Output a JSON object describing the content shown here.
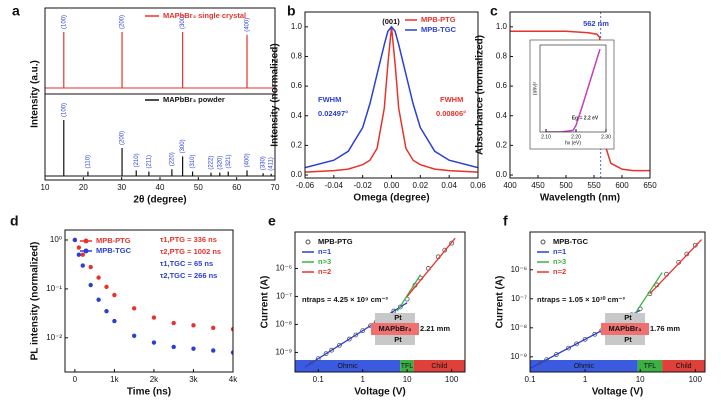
{
  "chart_data": [
    {
      "type": "stem",
      "panel": "a",
      "xlabel": "2θ (degree)",
      "ylabel": "Intensity (a.u.)",
      "xlim": [
        10,
        70
      ],
      "xticks": [
        10,
        20,
        30,
        40,
        50,
        60,
        70
      ],
      "series": [
        {
          "name": "MAPbBr₃ single crystal",
          "color": "#e8322c",
          "label_color": "#2a3fd4",
          "x": [
            14.9,
            30.1,
            45.9,
            62.7
          ],
          "values": [
            1.0,
            1.0,
            1.0,
            0.95
          ],
          "peak_labels": [
            "(100)",
            "(200)",
            "(300)",
            "(400)"
          ]
        },
        {
          "name": "MAPbBr₃ powder",
          "color": "#111111",
          "label_color": "#2a3fd4",
          "x": [
            14.9,
            21.2,
            30.1,
            33.8,
            37.1,
            43.1,
            45.9,
            48.5,
            53.3,
            55.6,
            57.8,
            62.7,
            66.9,
            69.0
          ],
          "values": [
            1.0,
            0.08,
            0.5,
            0.1,
            0.08,
            0.12,
            0.35,
            0.08,
            0.06,
            0.06,
            0.08,
            0.1,
            0.05,
            0.04
          ],
          "peak_labels": [
            "(100)",
            "(110)",
            "(200)",
            "(210)",
            "(211)",
            "(220)",
            "(300)",
            "(310)",
            "(222)",
            "(320)",
            "(321)",
            "(400)",
            "(330)",
            "(411)"
          ]
        }
      ]
    },
    {
      "type": "line",
      "panel": "b",
      "xlabel": "Omega (degree)",
      "ylabel": "Intensity (normalized)",
      "xlim": [
        -0.06,
        0.06
      ],
      "xticks": [
        -0.06,
        -0.04,
        -0.02,
        {
          "value": 0,
          "label": "0.00"
        },
        0.02,
        0.04,
        0.06
      ],
      "ylim": [
        -0.02,
        1.1
      ],
      "yticks": [
        {
          "value": 0,
          "label": "0.0"
        },
        0.2,
        0.4,
        0.6,
        0.8,
        {
          "value": 1,
          "label": "1.0"
        }
      ],
      "series": [
        {
          "name": "MPB-PTG",
          "color": "#e8322c",
          "x": [
            -0.06,
            -0.04,
            -0.03,
            -0.02,
            -0.015,
            -0.01,
            -0.005,
            -0.0025,
            0,
            0.0025,
            0.005,
            0.01,
            0.015,
            0.02,
            0.03,
            0.04,
            0.06
          ],
          "values": [
            0.02,
            0.03,
            0.04,
            0.07,
            0.1,
            0.18,
            0.45,
            0.75,
            1.0,
            0.75,
            0.45,
            0.18,
            0.1,
            0.07,
            0.04,
            0.03,
            0.02
          ]
        },
        {
          "name": "MPB-TGC",
          "color": "#2a3fd4",
          "x": [
            -0.06,
            -0.04,
            -0.03,
            -0.02,
            -0.015,
            -0.01,
            -0.005,
            -0.0025,
            0,
            0.0025,
            0.005,
            0.01,
            0.015,
            0.02,
            0.03,
            0.04,
            0.06
          ],
          "values": [
            0.05,
            0.1,
            0.16,
            0.32,
            0.48,
            0.68,
            0.88,
            0.97,
            1.0,
            0.97,
            0.88,
            0.68,
            0.48,
            0.32,
            0.16,
            0.1,
            0.05
          ]
        }
      ],
      "annotations": [
        {
          "text": "(001)",
          "color": "#111111"
        },
        {
          "text": "FWHM",
          "color": "#2a3fd4"
        },
        {
          "text": "0.02497°",
          "color": "#2a3fd4"
        },
        {
          "text": "FWHM",
          "color": "#e8322c"
        },
        {
          "text": "0.00806°",
          "color": "#e8322c"
        }
      ]
    },
    {
      "type": "line",
      "panel": "c",
      "xlabel": "Wavelength (nm)",
      "ylabel": "Absorbance (normalized)",
      "xlim": [
        400,
        650
      ],
      "xticks": [
        400,
        450,
        500,
        550,
        600,
        650
      ],
      "ylim": [
        -0.02,
        1.1
      ],
      "yticks": [
        {
          "value": 0,
          "label": "0.0"
        },
        0.2,
        0.4,
        0.6,
        0.8,
        {
          "value": 1,
          "label": "1.0"
        }
      ],
      "marker_x": 562,
      "series": [
        {
          "color": "#e8322c",
          "x": [
            400,
            450,
            500,
            540,
            555,
            560,
            562,
            565,
            570,
            580,
            600,
            620,
            650
          ],
          "values": [
            0.97,
            0.97,
            0.97,
            0.96,
            0.95,
            0.93,
            0.8,
            0.45,
            0.2,
            0.08,
            0.04,
            0.03,
            0.03
          ]
        }
      ],
      "annotations": [
        {
          "text": "562 nm",
          "color": "#2a3fd4"
        }
      ]
    },
    {
      "type": "line",
      "xlabel": "hν (eV)",
      "ylabel": "(αhν)²",
      "xlim": [
        2.08,
        2.3
      ],
      "xticks": [
        {
          "value": 2.1,
          "label": "2.10"
        },
        {
          "value": 2.2,
          "label": "2.20"
        },
        {
          "value": 2.3,
          "label": "2.30"
        }
      ],
      "ylim": [
        0,
        1.05
      ],
      "series": [
        {
          "color": "#c040c0",
          "x": [
            2.1,
            2.15,
            2.19,
            2.2,
            2.22,
            2.25,
            2.28
          ],
          "values": [
            0,
            0,
            0.02,
            0.08,
            0.3,
            0.65,
            1.0
          ]
        }
      ],
      "annotations": [
        {
          "text": "Eg = 2.2 eV",
          "color": "#333333"
        }
      ]
    },
    {
      "type": "scatter",
      "panel": "d",
      "xlabel": "Time (ns)",
      "ylabel": "PL intensity (normalized)",
      "xlim": [
        -250,
        4000
      ],
      "xticks": [
        0,
        {
          "value": 1000,
          "label": "1k"
        },
        {
          "value": 2000,
          "label": "2k"
        },
        {
          "value": 3000,
          "label": "3k"
        },
        {
          "value": 4000,
          "label": "4k"
        }
      ],
      "yscale": "log",
      "ylim": [
        0.002,
        1.6
      ],
      "yticks": [
        {
          "value": 1,
          "label": "10⁰"
        },
        {
          "value": 0.1,
          "label": "10⁻¹"
        },
        {
          "value": 0.01,
          "label": "10⁻²"
        }
      ],
      "series": [
        {
          "name": "MPB-PTG",
          "color": "#e8322c",
          "marker": "filled",
          "x": [
            0,
            100,
            200,
            400,
            600,
            800,
            1000,
            1500,
            2000,
            2500,
            3000,
            3500,
            4000
          ],
          "values": [
            1,
            0.7,
            0.5,
            0.28,
            0.17,
            0.11,
            0.075,
            0.04,
            0.026,
            0.02,
            0.018,
            0.016,
            0.015
          ]
        },
        {
          "name": "MPB-TGC",
          "color": "#2a3fd4",
          "marker": "filled",
          "x": [
            0,
            100,
            200,
            400,
            600,
            800,
            1000,
            1500,
            2000,
            2500,
            3000,
            3500,
            4000
          ],
          "values": [
            1,
            0.5,
            0.3,
            0.12,
            0.06,
            0.035,
            0.022,
            0.011,
            0.008,
            0.0065,
            0.006,
            0.0055,
            0.005
          ]
        }
      ],
      "annotations": [
        {
          "text": "τ1,PTG = 336 ns",
          "color": "#e8322c"
        },
        {
          "text": "τ2,PTG = 1002 ns",
          "color": "#e8322c"
        },
        {
          "text": "τ1,TGC = 65 ns",
          "color": "#2a3fd4"
        },
        {
          "text": "τ2,TGC = 266 ns",
          "color": "#2a3fd4"
        }
      ]
    },
    {
      "type": "scatter",
      "panel": "e",
      "xlabel": "Voltage (V)",
      "ylabel": "Current (A)",
      "xscale": "log",
      "xlim": [
        0.03,
        200
      ],
      "xticks": [
        0.1,
        1,
        10,
        100
      ],
      "yscale": "log",
      "ylim": [
        2e-10,
        2e-05
      ],
      "yticks": [
        {
          "value": 1e-09,
          "label": "10⁻⁹"
        },
        {
          "value": 1e-08,
          "label": "10⁻⁸"
        },
        {
          "value": 1e-07,
          "label": "10⁻⁷"
        },
        {
          "value": 1e-06,
          "label": "10⁻⁶"
        }
      ],
      "series": [
        {
          "name": "MPB-PTG",
          "color": "#555555",
          "marker": "open",
          "x": [
            0.07,
            0.1,
            0.15,
            0.2,
            0.3,
            0.5,
            0.7,
            1,
            1.5,
            2,
            3,
            5,
            7,
            10,
            15,
            20,
            30,
            50,
            70,
            100
          ],
          "values": [
            4.2e-10,
            6e-10,
            9e-10,
            1.2e-09,
            1.8e-09,
            3e-09,
            4.2e-09,
            6e-09,
            9e-09,
            1.2e-08,
            1.8e-08,
            3e-08,
            4.2e-08,
            8e-08,
            2.5e-07,
            4.5e-07,
            1e-06,
            2.6e-06,
            4.5e-06,
            8e-06
          ]
        },
        {
          "name": "n=1",
          "color": "#2a3fd4",
          "mode": "line",
          "x": [
            0.05,
            10
          ],
          "values": [
            3e-10,
            6e-08
          ]
        },
        {
          "name": "n>3",
          "color": "#3cb043",
          "mode": "line",
          "x": [
            6,
            20
          ],
          "values": [
            3e-08,
            6e-07
          ]
        },
        {
          "name": "n=2",
          "color": "#e8322c",
          "mode": "line",
          "x": [
            10,
            120
          ],
          "values": [
            1e-07,
            1.2e-05
          ]
        }
      ],
      "regions": [
        {
          "label": "Ohmic",
          "color": "#3a5be0",
          "from": 0.03,
          "to": 7
        },
        {
          "label": "TFL",
          "color": "#3cb043",
          "from": 7,
          "to": 14
        },
        {
          "label": "Child",
          "color": "#e0403a",
          "from": 14,
          "to": 200
        }
      ],
      "annotations": [
        {
          "text": "ntraps = 4.25 × 10⁹ cm⁻³",
          "color": "#111111"
        },
        {
          "text": "Pt",
          "color": "#111111"
        },
        {
          "text": "MAPbBr₃",
          "color": "#111111"
        },
        {
          "text": "Pt",
          "color": "#111111"
        },
        {
          "text": "2.21 mm",
          "color": "#111111"
        }
      ]
    },
    {
      "type": "scatter",
      "panel": "f",
      "xlabel": "Voltage (V)",
      "ylabel": "Current (A)",
      "xscale": "log",
      "xlim": [
        0.1,
        150
      ],
      "xticks": [
        0.1,
        1,
        10,
        100
      ],
      "yscale": "log",
      "ylim": [
        3e-10,
        2e-05
      ],
      "yticks": [
        {
          "value": 1e-09,
          "label": "10⁻⁹"
        },
        {
          "value": 1e-08,
          "label": "10⁻⁸"
        },
        {
          "value": 1e-07,
          "label": "10⁻⁷"
        },
        {
          "value": 1e-06,
          "label": "10⁻⁶"
        }
      ],
      "series": [
        {
          "name": "MPB-TGC",
          "color": "#555555",
          "marker": "open",
          "x": [
            0.15,
            0.2,
            0.3,
            0.5,
            0.7,
            1,
            1.5,
            2,
            3,
            5,
            7,
            10,
            15,
            20,
            30,
            50,
            70,
            100
          ],
          "values": [
            6e-10,
            8e-10,
            1.2e-09,
            2e-09,
            2.8e-09,
            4e-09,
            6e-09,
            8e-09,
            1.2e-08,
            2e-08,
            2.8e-08,
            4.5e-08,
            1.5e-07,
            3e-07,
            7e-07,
            1.8e-06,
            3.5e-06,
            7e-06
          ]
        },
        {
          "name": "n=1",
          "color": "#2a3fd4",
          "mode": "line",
          "x": [
            0.1,
            10
          ],
          "values": [
            4e-10,
            4e-08
          ]
        },
        {
          "name": "n>3",
          "color": "#3cb043",
          "mode": "line",
          "x": [
            8,
            25
          ],
          "values": [
            3e-08,
            8e-07
          ]
        },
        {
          "name": "n=2",
          "color": "#e8322c",
          "mode": "line",
          "x": [
            15,
            130
          ],
          "values": [
            1.5e-07,
            1.1e-05
          ]
        }
      ],
      "regions": [
        {
          "label": "Ohmic",
          "color": "#3a5be0",
          "from": 0.1,
          "to": 9
        },
        {
          "label": "TFL",
          "color": "#3cb043",
          "from": 9,
          "to": 25
        },
        {
          "label": "Child",
          "color": "#e0403a",
          "from": 25,
          "to": 150
        }
      ],
      "annotations": [
        {
          "text": "ntraps = 1.05 × 10¹⁰ cm⁻³",
          "color": "#111111"
        },
        {
          "text": "Pt",
          "color": "#111111"
        },
        {
          "text": "MAPbBr₃",
          "color": "#111111"
        },
        {
          "text": "Pt",
          "color": "#111111"
        },
        {
          "text": "1.76 mm",
          "color": "#111111"
        }
      ]
    }
  ]
}
